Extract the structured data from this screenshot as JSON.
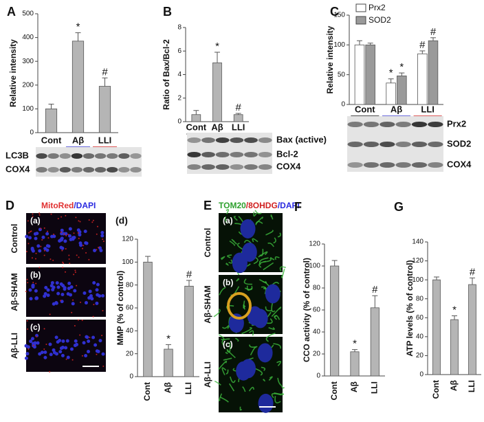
{
  "chart_data": [
    {
      "type": "bar",
      "panel": "A",
      "ylabel": "Relative intensity",
      "categories": [
        "Cont",
        "Aβ",
        "LLI"
      ],
      "values": [
        100,
        385,
        195
      ],
      "errors": [
        20,
        35,
        35
      ],
      "markers": [
        null,
        "*",
        "#"
      ],
      "color": "#b5b5b5",
      "ylim": [
        0,
        500
      ],
      "yticks": [
        0,
        100,
        200,
        300,
        400,
        500
      ],
      "blot_labels": [
        "LC3B",
        "COX4"
      ]
    },
    {
      "type": "bar",
      "panel": "B",
      "ylabel": "Ratio of Bax/Bcl-2",
      "categories": [
        "Cont",
        "Aβ",
        "LLI"
      ],
      "values": [
        0.6,
        5.0,
        0.6
      ],
      "errors": [
        0.35,
        0.9,
        0.1
      ],
      "markers": [
        null,
        "*",
        "#"
      ],
      "color": "#b5b5b5",
      "ylim": [
        0,
        8
      ],
      "yticks": [
        0,
        2,
        4,
        6,
        8
      ],
      "blot_labels": [
        "Bax (active)",
        "Bcl-2",
        "COX4"
      ]
    },
    {
      "type": "grouped-bar",
      "panel": "C",
      "ylabel": "Relative intensity",
      "categories": [
        "Cont",
        "Aβ",
        "LLI"
      ],
      "series": [
        {
          "name": "Prx2",
          "color": "#ffffff",
          "values": [
            100,
            36,
            85
          ],
          "errors": [
            7,
            7,
            5
          ],
          "markers": [
            null,
            "*",
            "#"
          ]
        },
        {
          "name": "SOD2",
          "color": "#9a9a9a",
          "values": [
            100,
            48,
            107
          ],
          "errors": [
            3,
            5,
            5
          ],
          "markers": [
            null,
            "*",
            "#"
          ]
        }
      ],
      "ylim": [
        0,
        150
      ],
      "yticks": [
        0,
        50,
        100,
        150
      ],
      "blot_labels": [
        "Prx2",
        "SOD2",
        "COX4"
      ]
    },
    {
      "type": "bar",
      "panel": "(d)",
      "ylabel": "MMP (% of control)",
      "categories": [
        "Cont",
        "Aβ",
        "LLI"
      ],
      "values": [
        100,
        24,
        79
      ],
      "errors": [
        5,
        4,
        5
      ],
      "markers": [
        null,
        "*",
        "#"
      ],
      "color": "#b5b5b5",
      "ylim": [
        0,
        120
      ],
      "yticks": [
        0,
        20,
        40,
        60,
        80,
        100,
        120
      ]
    },
    {
      "type": "bar",
      "panel": "F",
      "ylabel": "CCO activity (% of control)",
      "categories": [
        "Cont",
        "Aβ",
        "LLI"
      ],
      "values": [
        100,
        22,
        62
      ],
      "errors": [
        5,
        2,
        11
      ],
      "markers": [
        null,
        "*",
        "#"
      ],
      "color": "#b5b5b5",
      "ylim": [
        0,
        120
      ],
      "yticks": [
        0,
        20,
        40,
        60,
        80,
        100,
        120
      ]
    },
    {
      "type": "bar",
      "panel": "G",
      "ylabel": "ATP levels  (% of control)",
      "categories": [
        "Cont",
        "Aβ",
        "LLI"
      ],
      "values": [
        100,
        58,
        95
      ],
      "errors": [
        3,
        4,
        7
      ],
      "markers": [
        null,
        "*",
        "#"
      ],
      "color": "#b5b5b5",
      "ylim": [
        0,
        140
      ],
      "yticks": [
        0,
        20,
        40,
        60,
        80,
        100,
        120,
        140
      ]
    }
  ],
  "images": [
    {
      "panel": "D",
      "title_parts": [
        "MitoRed",
        "/DAPI"
      ],
      "rows": [
        {
          "tag": "(a)",
          "label": "Control"
        },
        {
          "tag": "(b)",
          "label": "Aβ-SHAM"
        },
        {
          "tag": "(c)",
          "label": "Aβ-LLI"
        }
      ]
    },
    {
      "panel": "E",
      "title_parts": [
        "TOM20",
        "/8OHDG",
        "/DAPI"
      ],
      "rows": [
        {
          "tag": "(a)",
          "label": "Control"
        },
        {
          "tag": "(b)",
          "label": "Aβ-SHAM"
        },
        {
          "tag": "(c)",
          "label": "Aβ-LLI"
        }
      ]
    }
  ]
}
